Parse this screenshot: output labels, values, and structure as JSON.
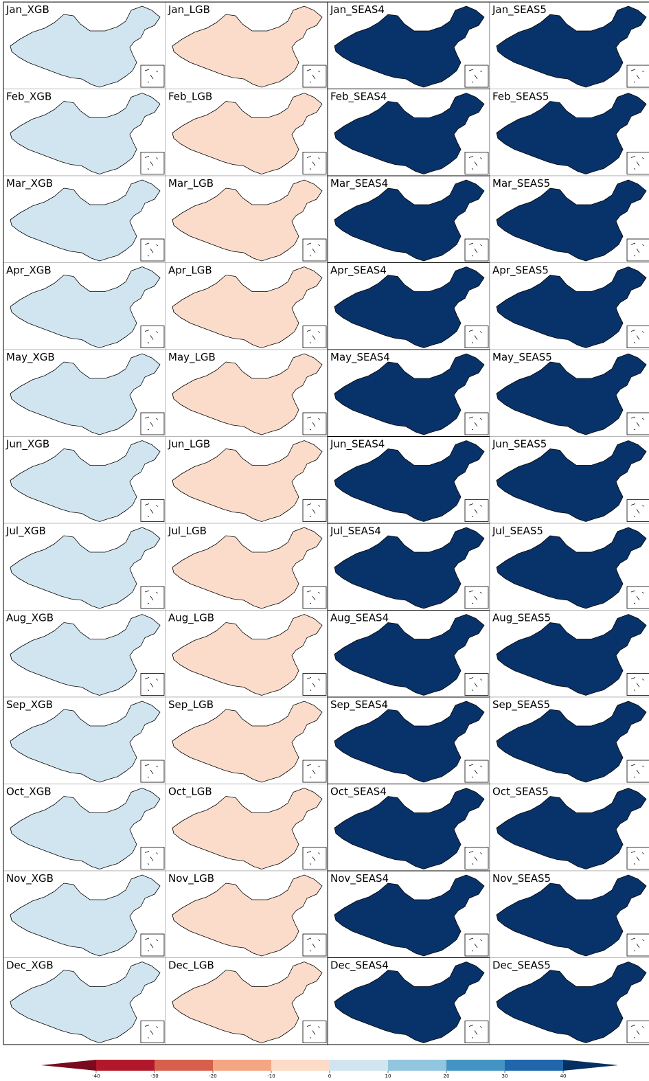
{
  "panels": [
    [
      "Jan_XGB",
      "Jan_LGB",
      "Jan_SEAS4",
      "Jan_SEAS5"
    ],
    [
      "Feb_XGB",
      "Feb_LGB",
      "Feb_SEAS4",
      "Feb_SEAS5"
    ],
    [
      "Mar_XGB",
      "Mar_LGB",
      "Mar_SEAS4",
      "Mar_SEAS5"
    ],
    [
      "Apr_XGB",
      "Apr_LGB",
      "Apr_SEAS4",
      "Apr_SEAS5"
    ],
    [
      "May_XGB",
      "May_LGB",
      "May_SEAS4",
      "May_SEAS5"
    ],
    [
      "Jun_XGB",
      "Jun_LGB",
      "Jun_SEAS4",
      "Jun_SEAS5"
    ],
    [
      "Jul_XGB",
      "Jul_LGB",
      "Jul_SEAS4",
      "Jul_SEAS5"
    ],
    [
      "Aug_XGB",
      "Aug_LGB",
      "Aug_SEAS4",
      "Aug_SEAS5"
    ],
    [
      "Sep_XGB",
      "Sep_LGB",
      "Sep_SEAS4",
      "Sep_SEAS5"
    ],
    [
      "Oct_XGB",
      "Oct_LGB",
      "Oct_SEAS4",
      "Oct_SEAS5"
    ],
    [
      "Nov_XGB",
      "Nov_LGB",
      "Nov_SEAS4",
      "Nov_SEAS5"
    ],
    [
      "Dec_XGB",
      "Dec_LGB",
      "Dec_SEAS4",
      "Dec_SEAS5"
    ]
  ],
  "column_fills": [
    "#d1e5f0",
    "#fbdccb",
    "#08326a",
    "#08326a"
  ],
  "colorbar": {
    "ticks": [
      -40,
      -30,
      -20,
      -10,
      0,
      10,
      20,
      30,
      40
    ],
    "colors": [
      "#7a0b1e",
      "#b2182b",
      "#d6604d",
      "#f4a582",
      "#fddbc7",
      "#d1e5f0",
      "#92c5de",
      "#4393c3",
      "#2166ac",
      "#053061"
    ]
  }
}
